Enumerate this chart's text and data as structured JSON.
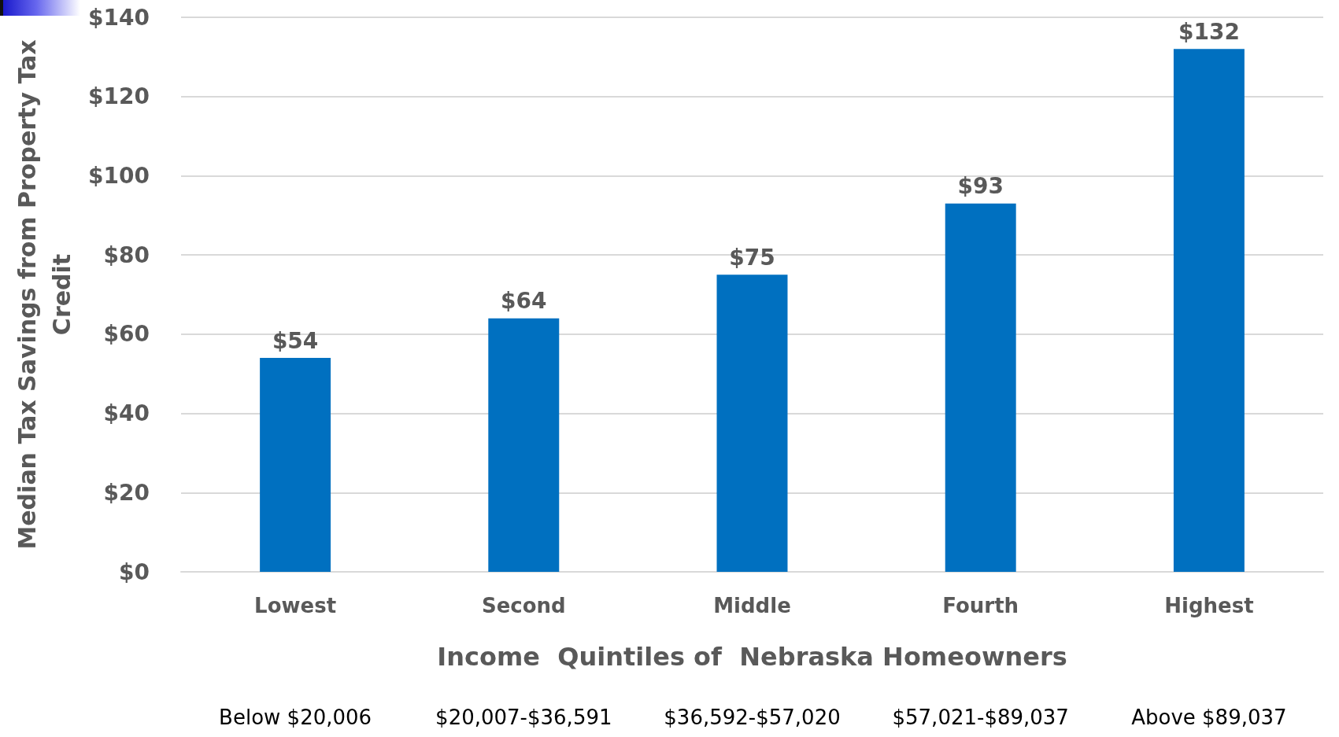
{
  "chart_data": {
    "type": "bar",
    "xlabel": "Income  Quintiles of  Nebraska Homeowners",
    "ylabel": "Median Tax Savings from Property Tax Credit",
    "categories": [
      "Lowest",
      "Second",
      "Middle",
      "Fourth",
      "Highest"
    ],
    "values": [
      54,
      64,
      75,
      93,
      132
    ],
    "color": "#0070c0",
    "value_labels": [
      "$54",
      "$64",
      "$75",
      "$93",
      "$132"
    ],
    "ylim": [
      0,
      140
    ],
    "yticks": [
      {
        "value": 0,
        "label": "$0"
      },
      {
        "value": 20,
        "label": "$20"
      },
      {
        "value": 40,
        "label": "$40"
      },
      {
        "value": 60,
        "label": "$60"
      },
      {
        "value": 80,
        "label": "$80"
      },
      {
        "value": 100,
        "label": "$100"
      },
      {
        "value": 120,
        "label": "$120"
      },
      {
        "value": 140,
        "label": "$140"
      }
    ],
    "grid": "y",
    "annotations": [
      "Below $20,006",
      "$20,007-$36,591",
      "$36,592-$57,020",
      "$57,021-$89,037",
      "Above $89,037"
    ]
  }
}
